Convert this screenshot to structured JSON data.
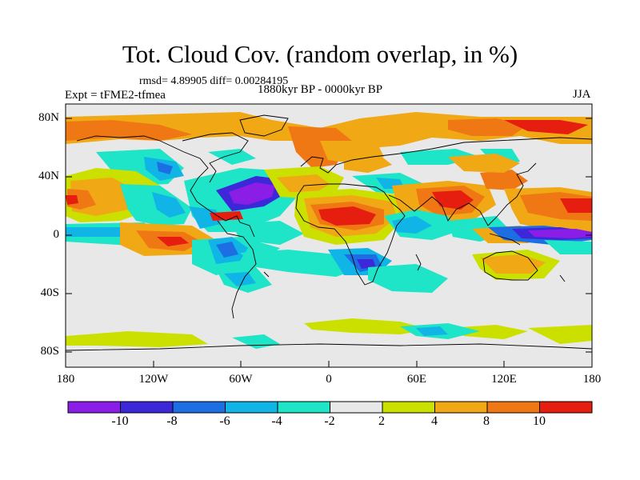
{
  "title": "Tot. Cloud Cov. (random overlap, in %)",
  "stats": "rmsd= 4.89905 diff= 0.00284195",
  "experiment": "Expt = tFME2-tfmea",
  "period": "1880kyr BP - 0000kyr BP",
  "season": "JJA",
  "lat_ticks": [
    "80N",
    "40N",
    "0",
    "40S",
    "80S"
  ],
  "lon_ticks": [
    "180",
    "120W",
    "60W",
    "0",
    "60E",
    "120E",
    "180"
  ],
  "colorbar": {
    "labels": [
      "-10",
      "-8",
      "-6",
      "-4",
      "-2",
      "2",
      "4",
      "8",
      "10"
    ],
    "colors": [
      "#8a1ee6",
      "#3c28d8",
      "#1c6ee2",
      "#10b4e6",
      "#1ee4c8",
      "#e8e8e8",
      "#cce000",
      "#f0a814",
      "#f07814",
      "#e61e10"
    ]
  },
  "colors": {
    "background": "#e8e8e8",
    "coastline": "#000000"
  }
}
